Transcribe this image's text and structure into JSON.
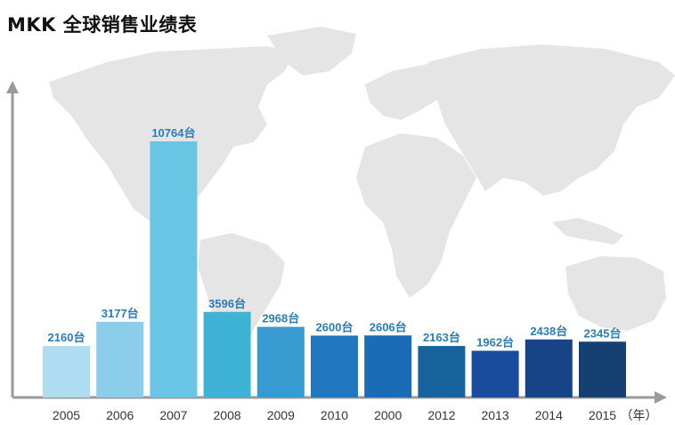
{
  "title": "MKK 全球销售业绩表",
  "chart_data": {
    "type": "bar",
    "title": "MKK 全球销售业绩表",
    "categories": [
      "2005",
      "2006",
      "2007",
      "2008",
      "2009",
      "2010",
      "2000",
      "2012",
      "2013",
      "2014",
      "2015"
    ],
    "values": [
      2160,
      3177,
      10764,
      3596,
      2968,
      2600,
      2606,
      2163,
      1962,
      2438,
      2345
    ],
    "value_labels": [
      "2160台",
      "3177台",
      "10764台",
      "3596台",
      "2968台",
      "2600台",
      "2606台",
      "2163台",
      "1962台",
      "2438台",
      "2345台"
    ],
    "xlabel": "（年）",
    "ylabel": "",
    "ylim": [
      0,
      12000
    ],
    "grid": false,
    "legend": "none",
    "bar_colors": [
      "#aedcf1",
      "#8ccdeb",
      "#6ac4e3",
      "#3fb3d5",
      "#379bd1",
      "#2178bf",
      "#1a6db5",
      "#15629c",
      "#1a4b9c",
      "#164487",
      "#144172"
    ],
    "label_color": "#2a7db8",
    "axis_color": "#9a9a9a",
    "background_map_color": "#e4e4e4"
  }
}
